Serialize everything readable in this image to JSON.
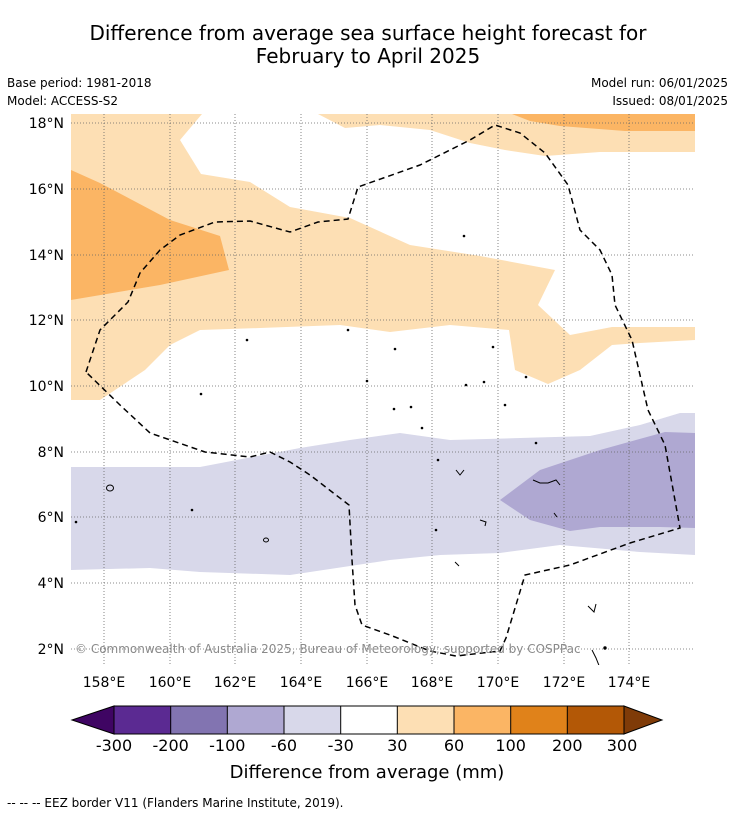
{
  "title": {
    "line1": "Difference from average sea surface height forecast for",
    "line2": "February to April 2025"
  },
  "meta": {
    "base_period": "Base period: 1981-2018",
    "model": "Model: ACCESS-S2",
    "model_run": "Model run: 06/01/2025",
    "issued": "Issued: 08/01/2025"
  },
  "map": {
    "lat_labels": [
      "18°N",
      "16°N",
      "14°N",
      "12°N",
      "10°N",
      "8°N",
      "6°N",
      "4°N",
      "2°N"
    ],
    "lon_labels": [
      "158°E",
      "160°E",
      "162°E",
      "164°E",
      "166°E",
      "168°E",
      "170°E",
      "172°E",
      "174°E"
    ],
    "copyright": "© Commonwealth of Australia 2025, Bureau of Meteorology; supported by COSPPac",
    "colors": {
      "pos_30_60": "#fddfb4",
      "pos_60_100": "#fbb564",
      "neg_60_30": "#d8d8ea",
      "neg_100_60": "#afa8d2",
      "eez_line": "#000000"
    }
  },
  "colorbar": {
    "title": "Difference from average (mm)",
    "tick_labels": [
      "-300",
      "-200",
      "-100",
      "-60",
      "-30",
      "30",
      "60",
      "100",
      "200",
      "300"
    ],
    "colors": [
      "#3f0563",
      "#5b2a92",
      "#8274b1",
      "#afa8d2",
      "#d8d8ea",
      "#ffffff",
      "#fddfb4",
      "#fbb564",
      "#e0821a",
      "#b35806",
      "#7f3b08"
    ]
  },
  "footer": "--  --  -- EEZ border V11 (Flanders Marine Institute, 2019)."
}
